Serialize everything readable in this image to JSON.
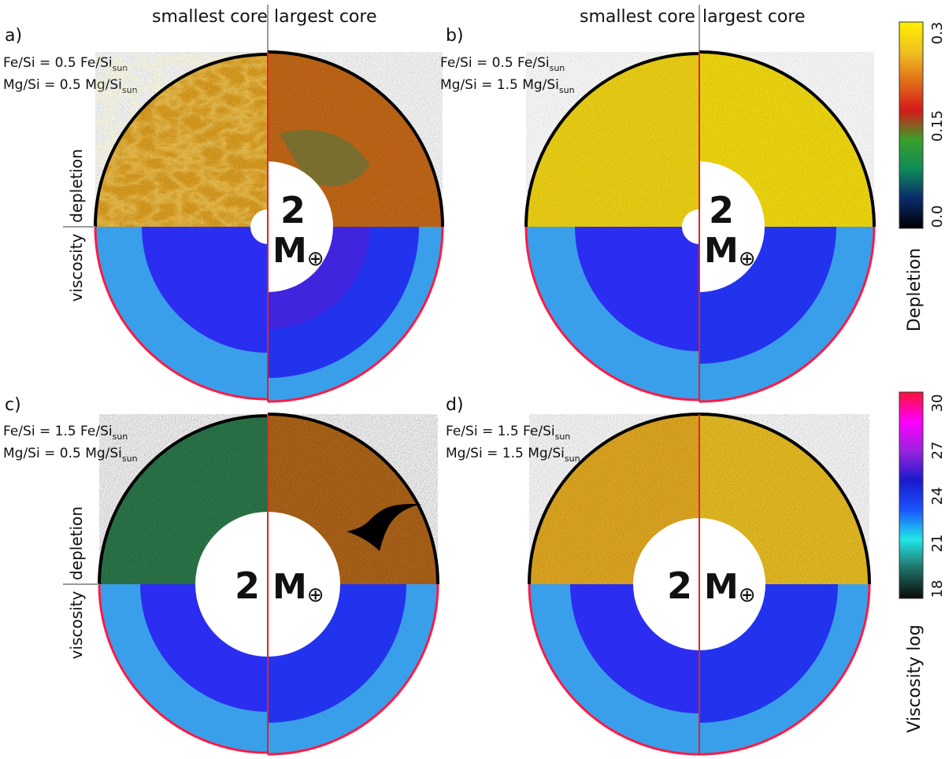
{
  "panels": [
    {
      "letter": "a)",
      "fe_main": "Fe/Si = 0.5 Fe/Si",
      "fe_sub": "sun",
      "mg_main": "Mg/Si = 0.5 Mg/Si",
      "mg_sub": "sun",
      "left_header": "smallest core",
      "right_header": "largest core",
      "side_top": "depletion",
      "side_bottom": "viscosity",
      "mass_num": "2",
      "mass_unit": "M",
      "mass_sym": "⊕"
    },
    {
      "letter": "b)",
      "fe_main": "Fe/Si = 0.5 Fe/Si",
      "fe_sub": "sun",
      "mg_main": "Mg/Si = 1.5 Mg/Si",
      "mg_sub": "sun",
      "left_header": "smallest core",
      "right_header": "largest core",
      "side_top": "",
      "side_bottom": "",
      "mass_num": "2",
      "mass_unit": "M",
      "mass_sym": "⊕"
    },
    {
      "letter": "c)",
      "fe_main": "Fe/Si = 1.5 Fe/Si",
      "fe_sub": "sun",
      "mg_main": "Mg/Si = 0.5 Mg/Si",
      "mg_sub": "sun",
      "left_header": "",
      "right_header": "",
      "side_top": "depletion",
      "side_bottom": "viscosity",
      "mass_num": "2",
      "mass_unit": "M",
      "mass_sym": "⊕"
    },
    {
      "letter": "d)",
      "fe_main": "Fe/Si = 1.5 Fe/Si",
      "fe_sub": "sun",
      "mg_main": "Mg/Si = 1.5 Mg/Si",
      "mg_sub": "sun",
      "left_header": "",
      "right_header": "",
      "side_top": "",
      "side_bottom": "",
      "mass_num": "2",
      "mass_unit": "M",
      "mass_sym": "⊕"
    }
  ],
  "colorbars": {
    "depletion": {
      "title": "Depletion",
      "ticks": [
        "0.3",
        "0.15",
        "0.0"
      ],
      "colors": [
        "#000000",
        "#0a2a6a",
        "#0f8a5a",
        "#3aa02a",
        "#d41a1a",
        "#e07018",
        "#f0c020",
        "#fff000"
      ]
    },
    "viscosity": {
      "title": "Viscosity log",
      "ticks": [
        "30",
        "27",
        "24",
        "21",
        "18"
      ],
      "colors": [
        "#0a0a0a",
        "#1f6f66",
        "#22e6e6",
        "#1a55ff",
        "#1a1acc",
        "#9a22dd",
        "#ff00ff",
        "#ff1133"
      ]
    }
  },
  "fill_colors": {
    "dep_yellow_orange": "#e3a322",
    "dep_bright_yellow": "#f1d415",
    "dep_brown_orange": "#c96b18",
    "dep_green": "#2e7e4e",
    "visc_light_blue": "#3a9fea",
    "visc_blue": "#2233ee",
    "visc_purple": "#4d1fd8",
    "rim_black": "#000000",
    "rim_red": "#ff1a44",
    "divider_red": "#e62222",
    "divider_gray": "#9a9a9a"
  }
}
